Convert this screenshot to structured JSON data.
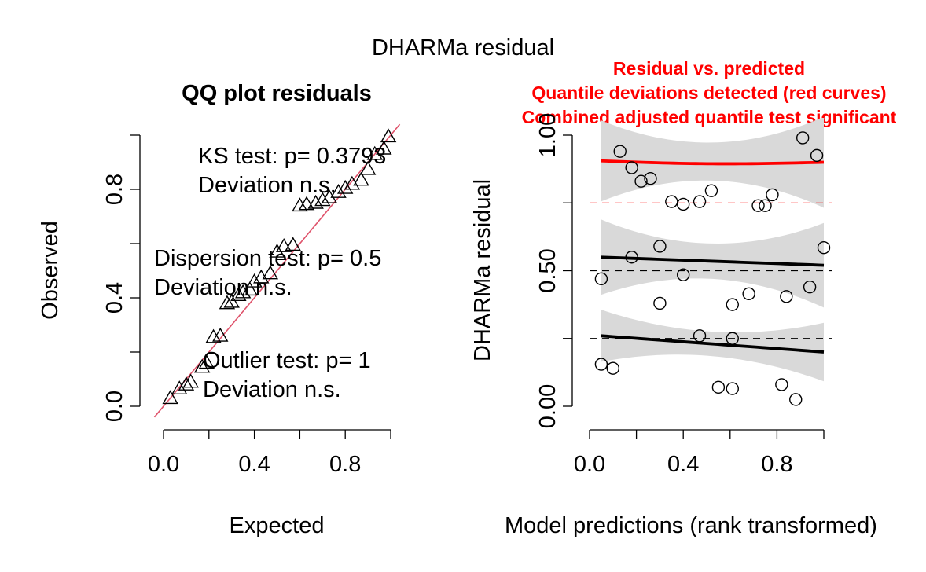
{
  "figure": {
    "title": "DHARMa residual"
  },
  "chart_data": [
    {
      "type": "scatter",
      "title": "QQ plot residuals",
      "xlabel": "Expected",
      "ylabel": "Observed",
      "xlim": [
        0,
        1
      ],
      "ylim": [
        0,
        1
      ],
      "xticks": [
        0.0,
        0.4,
        0.8
      ],
      "xtick_labels": [
        "0.0",
        "0.4",
        "0.8"
      ],
      "yticks": [
        0.0,
        0.4,
        0.8
      ],
      "ytick_labels": [
        "0.0",
        "0.4",
        "0.8"
      ],
      "reference_line": {
        "slope": 1,
        "intercept": 0,
        "color": "#df536b"
      },
      "marker": "triangle",
      "points": [
        [
          0.03,
          0.03
        ],
        [
          0.07,
          0.065
        ],
        [
          0.1,
          0.08
        ],
        [
          0.12,
          0.09
        ],
        [
          0.17,
          0.145
        ],
        [
          0.19,
          0.16
        ],
        [
          0.22,
          0.255
        ],
        [
          0.25,
          0.26
        ],
        [
          0.28,
          0.38
        ],
        [
          0.3,
          0.385
        ],
        [
          0.33,
          0.41
        ],
        [
          0.35,
          0.42
        ],
        [
          0.38,
          0.43
        ],
        [
          0.4,
          0.46
        ],
        [
          0.43,
          0.475
        ],
        [
          0.47,
          0.49
        ],
        [
          0.5,
          0.57
        ],
        [
          0.53,
          0.59
        ],
        [
          0.57,
          0.595
        ],
        [
          0.6,
          0.74
        ],
        [
          0.63,
          0.745
        ],
        [
          0.67,
          0.75
        ],
        [
          0.7,
          0.76
        ],
        [
          0.73,
          0.77
        ],
        [
          0.77,
          0.79
        ],
        [
          0.8,
          0.805
        ],
        [
          0.83,
          0.82
        ],
        [
          0.87,
          0.835
        ],
        [
          0.9,
          0.875
        ],
        [
          0.93,
          0.93
        ],
        [
          0.97,
          0.95
        ],
        [
          0.99,
          0.995
        ]
      ],
      "annotations": [
        {
          "id": "ks",
          "lines": [
            "KS test: p= 0.3793",
            "Deviation  n.s."
          ]
        },
        {
          "id": "dispersion",
          "lines": [
            "Dispersion test: p= 0.5",
            "Deviation  n.s."
          ]
        },
        {
          "id": "outlier",
          "lines": [
            "Outlier test: p= 1",
            "Deviation  n.s."
          ]
        }
      ]
    },
    {
      "type": "scatter",
      "title_lines": [
        "Residual vs. predicted",
        "Quantile deviations detected (red curves)",
        "Combined adjusted quantile test significant"
      ],
      "title_color": "#ff0000",
      "xlabel": "Model predictions (rank transformed)",
      "ylabel": "DHARMa residual",
      "xlim": [
        0,
        1
      ],
      "ylim": [
        0,
        1
      ],
      "xticks": [
        0.0,
        0.4,
        0.8
      ],
      "xtick_labels": [
        "0.0",
        "0.4",
        "0.8"
      ],
      "yticks": [
        0.0,
        0.25,
        0.5,
        0.75,
        1.0
      ],
      "ytick_labels": [
        "0.00",
        "0.50",
        "1.00"
      ],
      "ytick_label_values": [
        0.0,
        0.5,
        1.0
      ],
      "hlines": [
        {
          "y": 0.25,
          "color": "#000000"
        },
        {
          "y": 0.5,
          "color": "#000000"
        },
        {
          "y": 0.75,
          "color": "#ff0000"
        }
      ],
      "marker": "circle",
      "points": [
        [
          0.05,
          0.47
        ],
        [
          0.05,
          0.155
        ],
        [
          0.1,
          0.14
        ],
        [
          0.13,
          0.94
        ],
        [
          0.18,
          0.88
        ],
        [
          0.18,
          0.55
        ],
        [
          0.22,
          0.83
        ],
        [
          0.26,
          0.84
        ],
        [
          0.3,
          0.59
        ],
        [
          0.3,
          0.38
        ],
        [
          0.35,
          0.755
        ],
        [
          0.4,
          0.745
        ],
        [
          0.4,
          0.485
        ],
        [
          0.47,
          0.755
        ],
        [
          0.47,
          0.26
        ],
        [
          0.52,
          0.795
        ],
        [
          0.55,
          0.07
        ],
        [
          0.61,
          0.375
        ],
        [
          0.61,
          0.25
        ],
        [
          0.61,
          0.065
        ],
        [
          0.68,
          0.415
        ],
        [
          0.72,
          0.74
        ],
        [
          0.75,
          0.74
        ],
        [
          0.78,
          0.78
        ],
        [
          0.82,
          0.08
        ],
        [
          0.84,
          0.405
        ],
        [
          0.88,
          0.025
        ],
        [
          0.91,
          0.99
        ],
        [
          0.94,
          0.44
        ],
        [
          0.97,
          0.925
        ],
        [
          1.0,
          0.585
        ]
      ],
      "quantile_fits": [
        {
          "quantile": 0.25,
          "color": "#000000",
          "y_start": 0.26,
          "y_end": 0.2,
          "band": 0.045
        },
        {
          "quantile": 0.5,
          "color": "#000000",
          "y_start": 0.55,
          "y_end": 0.52,
          "band": 0.065
        },
        {
          "quantile": 0.75,
          "color": "#ff0000",
          "y_start": 0.905,
          "y_end": 0.9,
          "band": 0.07
        }
      ],
      "band_color": "#d9d9d9"
    }
  ]
}
